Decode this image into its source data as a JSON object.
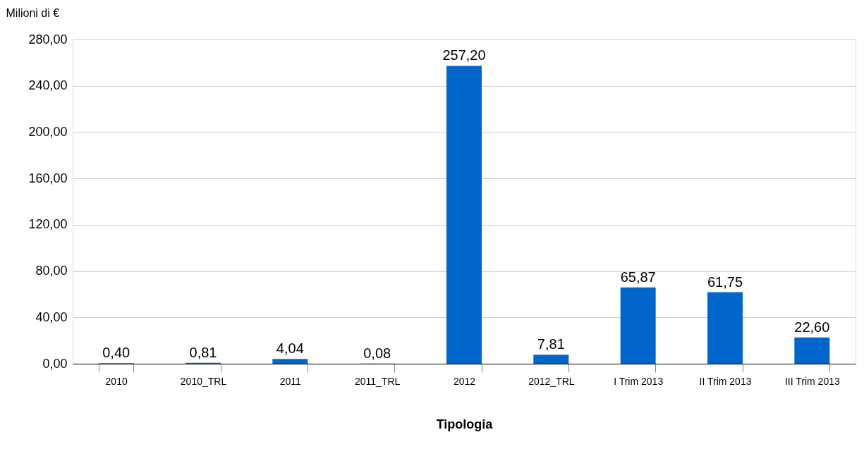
{
  "chart_data": {
    "type": "bar",
    "categories": [
      "2010",
      "2010_TRL",
      "2011",
      "2011_TRL",
      "2012",
      "2012_TRL",
      "I Trim 2013",
      "II Trim 2013",
      "III Trim 2013"
    ],
    "values": [
      0.4,
      0.81,
      4.04,
      0.08,
      257.2,
      7.81,
      65.87,
      61.75,
      22.6
    ],
    "value_labels": [
      "0,40",
      "0,81",
      "4,04",
      "0,08",
      "257,20",
      "7,81",
      "65,87",
      "61,75",
      "22,60"
    ],
    "color": "#0066cc",
    "xlabel": "Tipologia",
    "ylabel": "Milioni di €",
    "ylim": [
      0,
      280
    ],
    "yticks": [
      {
        "value": 0,
        "label": "0,00"
      },
      {
        "value": 40,
        "label": "40,00"
      },
      {
        "value": 80,
        "label": "80,00"
      },
      {
        "value": 120,
        "label": "120,00"
      },
      {
        "value": 160,
        "label": "160,00"
      },
      {
        "value": 200,
        "label": "200,00"
      },
      {
        "value": 240,
        "label": "240,00"
      },
      {
        "value": 280,
        "label": "280,00"
      }
    ],
    "grid": "y"
  }
}
